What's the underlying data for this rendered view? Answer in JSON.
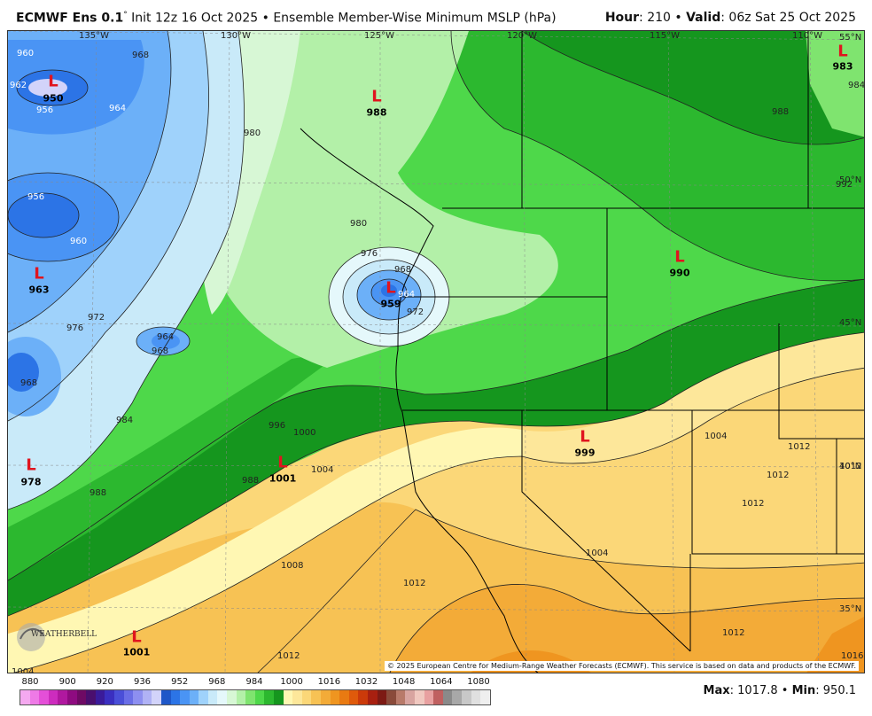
{
  "header": {
    "model": "ECMWF Ens 0.1",
    "degree": "°",
    "init": "Init 12z 16 Oct 2025",
    "bullet": "•",
    "product": "Ensemble Member-Wise Minimum MSLP (hPa)",
    "hour_label": "Hour",
    "hour_value": "210",
    "valid_label": "Valid",
    "valid_value": "06z Sat 25 Oct 2025"
  },
  "longitudes": [
    "135°W",
    "130°W",
    "125°W",
    "120°W",
    "115°W",
    "110°W"
  ],
  "latitudes": [
    "55°N",
    "50°N",
    "45°N",
    "40°N",
    "35°N"
  ],
  "lows": [
    {
      "label": "L",
      "value": "950"
    },
    {
      "label": "L",
      "value": "963"
    },
    {
      "label": "L",
      "value": "978"
    },
    {
      "label": "L",
      "value": "988"
    },
    {
      "label": "L",
      "value": "959"
    },
    {
      "label": "L",
      "value": "990"
    },
    {
      "label": "L",
      "value": "983"
    },
    {
      "label": "L",
      "value": "1001"
    },
    {
      "label": "L",
      "value": "999"
    },
    {
      "label": "L",
      "value": "1001"
    }
  ],
  "isobar_labels": [
    "960",
    "962",
    "956",
    "968",
    "964",
    "956",
    "960",
    "972",
    "976",
    "968",
    "964",
    "968",
    "984",
    "988",
    "980",
    "976",
    "968",
    "964",
    "972",
    "980",
    "988",
    "984",
    "988",
    "992",
    "996",
    "1000",
    "1004",
    "1008",
    "1012",
    "1012",
    "1004",
    "1004",
    "1012",
    "1012",
    "1012",
    "1004",
    "1012",
    "1012",
    "1016"
  ],
  "copyright": "© 2025 European Centre for Medium-Range Weather Forecasts (ECMWF). This service is based on data and products of the ECMWF.",
  "logo_text": "WEATHERBELL",
  "colorbar": {
    "ticks": [
      "880",
      "900",
      "920",
      "936",
      "952",
      "968",
      "984",
      "1000",
      "1016",
      "1032",
      "1048",
      "1064",
      "1080"
    ],
    "colors": [
      "#f5a9f0",
      "#ee7ae6",
      "#e44fd8",
      "#cd2cbe",
      "#b0189f",
      "#8e0b80",
      "#6e0a64",
      "#4a0f6e",
      "#3a1b9a",
      "#3a2fc0",
      "#4a4fd8",
      "#6a6ee6",
      "#8d8ff0",
      "#b0b2f5",
      "#d2d3fa",
      "#1f57c8",
      "#2c74e6",
      "#4a94f4",
      "#6cb0f8",
      "#9fd2fb",
      "#c9eaf9",
      "#e5f8fb",
      "#d7f7d5",
      "#b3f0a8",
      "#7fe46f",
      "#4ed84a",
      "#2cb82f",
      "#15961e",
      "#fff7b3",
      "#fde79a",
      "#fbd778",
      "#f7c254",
      "#f3ab38",
      "#ef9520",
      "#e97a12",
      "#df5a0b",
      "#cb3a0a",
      "#a82010",
      "#7d1a14",
      "#8a4a3a",
      "#b87a6a",
      "#d8a4a0",
      "#f0c8c0",
      "#e8a0a0",
      "#c06060",
      "#8a8a8a",
      "#a8a8a8",
      "#c8c8c8",
      "#e0e0e0",
      "#efefef"
    ]
  },
  "stats": {
    "max_label": "Max",
    "max_value": "1017.8",
    "min_label": "Min",
    "min_value": "950.1"
  }
}
